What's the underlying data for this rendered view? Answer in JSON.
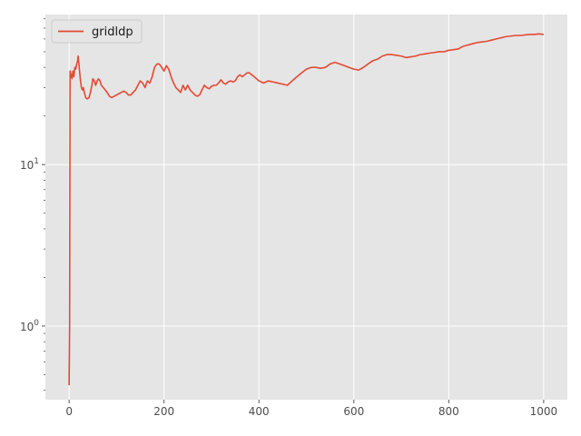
{
  "chart_data": {
    "type": "line",
    "title": "",
    "xlabel": "",
    "ylabel": "",
    "xlim": [
      -50,
      1050
    ],
    "ylim": [
      0.35,
      85
    ],
    "yscale": "log",
    "grid": true,
    "legend_position": "top-left",
    "x_ticks": [
      0,
      200,
      400,
      600,
      800,
      1000
    ],
    "x_tick_labels": [
      "0",
      "200",
      "400",
      "600",
      "800",
      "1000"
    ],
    "y_major_ticks": [
      1,
      10
    ],
    "y_tick_bases": [
      "10",
      "10"
    ],
    "y_tick_exponents": [
      "0",
      "1"
    ],
    "series": [
      {
        "name": "gridldp",
        "color": "#E24A33",
        "points": [
          [
            0,
            0.43
          ],
          [
            1,
            1.0
          ],
          [
            2,
            38
          ],
          [
            4,
            36
          ],
          [
            6,
            34
          ],
          [
            8,
            38
          ],
          [
            10,
            35
          ],
          [
            12,
            40
          ],
          [
            14,
            39
          ],
          [
            16,
            42
          ],
          [
            18,
            44
          ],
          [
            19,
            47
          ],
          [
            20,
            44
          ],
          [
            22,
            38
          ],
          [
            24,
            33
          ],
          [
            26,
            30
          ],
          [
            28,
            29
          ],
          [
            30,
            30
          ],
          [
            32,
            28
          ],
          [
            35,
            26
          ],
          [
            38,
            25.5
          ],
          [
            42,
            26
          ],
          [
            45,
            28
          ],
          [
            48,
            31
          ],
          [
            50,
            34
          ],
          [
            53,
            33
          ],
          [
            56,
            31
          ],
          [
            59,
            33
          ],
          [
            62,
            34
          ],
          [
            65,
            33
          ],
          [
            68,
            31
          ],
          [
            72,
            30
          ],
          [
            76,
            29
          ],
          [
            80,
            28
          ],
          [
            85,
            26.5
          ],
          [
            90,
            26
          ],
          [
            95,
            26.5
          ],
          [
            100,
            27
          ],
          [
            105,
            27.5
          ],
          [
            110,
            28
          ],
          [
            115,
            28.5
          ],
          [
            120,
            28
          ],
          [
            125,
            27
          ],
          [
            130,
            27
          ],
          [
            135,
            28
          ],
          [
            140,
            29
          ],
          [
            145,
            31
          ],
          [
            150,
            33
          ],
          [
            155,
            32
          ],
          [
            160,
            30
          ],
          [
            165,
            33
          ],
          [
            170,
            32
          ],
          [
            175,
            35
          ],
          [
            180,
            40
          ],
          [
            185,
            42
          ],
          [
            190,
            42
          ],
          [
            195,
            40
          ],
          [
            200,
            38
          ],
          [
            205,
            41
          ],
          [
            210,
            39
          ],
          [
            215,
            35
          ],
          [
            220,
            32
          ],
          [
            225,
            30
          ],
          [
            230,
            29
          ],
          [
            235,
            28
          ],
          [
            240,
            31
          ],
          [
            245,
            29
          ],
          [
            250,
            31
          ],
          [
            255,
            29
          ],
          [
            260,
            28
          ],
          [
            265,
            27
          ],
          [
            270,
            26.5
          ],
          [
            275,
            27
          ],
          [
            280,
            29
          ],
          [
            285,
            31
          ],
          [
            290,
            30
          ],
          [
            295,
            29.5
          ],
          [
            300,
            30.5
          ],
          [
            305,
            31
          ],
          [
            310,
            31
          ],
          [
            315,
            32
          ],
          [
            320,
            33.5
          ],
          [
            325,
            32
          ],
          [
            330,
            31.5
          ],
          [
            335,
            32.5
          ],
          [
            340,
            33
          ],
          [
            345,
            32.5
          ],
          [
            350,
            33
          ],
          [
            355,
            35
          ],
          [
            360,
            36
          ],
          [
            365,
            35
          ],
          [
            370,
            36
          ],
          [
            375,
            37
          ],
          [
            380,
            37
          ],
          [
            385,
            36
          ],
          [
            390,
            35
          ],
          [
            395,
            34
          ],
          [
            400,
            33
          ],
          [
            410,
            32
          ],
          [
            420,
            33
          ],
          [
            430,
            32.5
          ],
          [
            440,
            32
          ],
          [
            450,
            31.5
          ],
          [
            460,
            31
          ],
          [
            470,
            33
          ],
          [
            480,
            35
          ],
          [
            490,
            37
          ],
          [
            500,
            39
          ],
          [
            510,
            40
          ],
          [
            520,
            40
          ],
          [
            530,
            39.5
          ],
          [
            540,
            40
          ],
          [
            550,
            42
          ],
          [
            560,
            43
          ],
          [
            570,
            42
          ],
          [
            580,
            41
          ],
          [
            590,
            40
          ],
          [
            600,
            39
          ],
          [
            610,
            38.5
          ],
          [
            620,
            40
          ],
          [
            630,
            42
          ],
          [
            640,
            44
          ],
          [
            650,
            45
          ],
          [
            660,
            47
          ],
          [
            670,
            48
          ],
          [
            680,
            48
          ],
          [
            690,
            47.5
          ],
          [
            700,
            47
          ],
          [
            710,
            46
          ],
          [
            720,
            46.5
          ],
          [
            730,
            47
          ],
          [
            740,
            48
          ],
          [
            750,
            48.5
          ],
          [
            760,
            49
          ],
          [
            770,
            49.5
          ],
          [
            780,
            50
          ],
          [
            790,
            50
          ],
          [
            800,
            51
          ],
          [
            810,
            51.5
          ],
          [
            820,
            52
          ],
          [
            830,
            54
          ],
          [
            840,
            55
          ],
          [
            850,
            56
          ],
          [
            860,
            57
          ],
          [
            870,
            57.5
          ],
          [
            880,
            58
          ],
          [
            890,
            59
          ],
          [
            900,
            60
          ],
          [
            910,
            61
          ],
          [
            920,
            62
          ],
          [
            930,
            62.5
          ],
          [
            940,
            63
          ],
          [
            950,
            63
          ],
          [
            960,
            63.5
          ],
          [
            970,
            64
          ],
          [
            980,
            64
          ],
          [
            990,
            64.5
          ],
          [
            1000,
            64
          ]
        ]
      }
    ]
  }
}
